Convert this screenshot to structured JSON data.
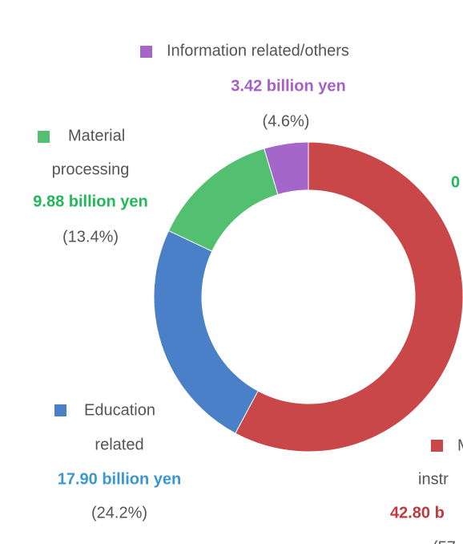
{
  "chart_data": {
    "type": "donut",
    "categories": [
      [
        "M",
        "instr"
      ],
      [
        "Education",
        "related"
      ],
      [
        "Material",
        "processing"
      ],
      [
        "Information related/others"
      ]
    ],
    "values": [
      42.8,
      17.9,
      9.88,
      3.42
    ],
    "value_labels": [
      "42.80 b",
      "17.90 billion yen",
      "9.88 billion yen",
      "3.42 billion yen"
    ],
    "percent_labels": [
      "(57",
      "(24.2%)",
      "(13.4%)",
      "(4.6%)"
    ],
    "colors": [
      "#c94649",
      "#4a80c8",
      "#52c070",
      "#a566c9"
    ],
    "label_colors": [
      "#c0393f",
      "#3a97d0",
      "#22b85a",
      "#a45fc8"
    ],
    "annotations": [
      "0"
    ]
  }
}
